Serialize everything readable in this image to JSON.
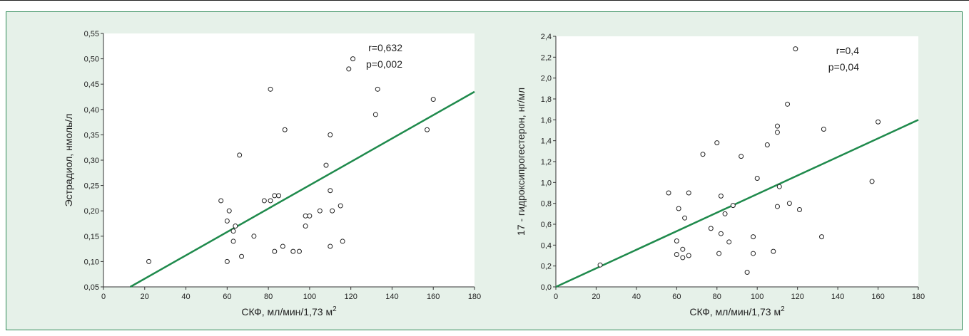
{
  "colors": {
    "panel_bg": "#e6f1e9",
    "plot_bg": "#ffffff",
    "line": "#1f8a4c",
    "border": "#2e8a57"
  },
  "chart_data": [
    {
      "type": "scatter",
      "xlabel": "СКФ, мл/мин/1,73 м",
      "xlabel_sup": "2",
      "ylabel": "Эстрадиол, нмоль/л",
      "xlim": [
        0,
        180
      ],
      "ylim": [
        0.05,
        0.55
      ],
      "x_ticks": [
        0,
        20,
        40,
        60,
        80,
        100,
        120,
        140,
        160,
        180
      ],
      "x_tick_labels": [
        "0",
        "20",
        "40",
        "60",
        "80",
        "100",
        "120",
        "140",
        "160",
        "180"
      ],
      "y_ticks": [
        0.05,
        0.1,
        0.15,
        0.2,
        0.25,
        0.3,
        0.35,
        0.4,
        0.45,
        0.5,
        0.55
      ],
      "y_tick_labels": [
        "0,05",
        "0,10",
        "0,15",
        "0,20",
        "0,25",
        "0,30",
        "0,35",
        "0,40",
        "0,45",
        "0,50",
        "0,55"
      ],
      "annotations": [
        "r=0,632",
        "p=0,002"
      ],
      "regression": {
        "x": [
          13,
          180
        ],
        "y": [
          0.05,
          0.435
        ]
      },
      "points": [
        [
          22,
          0.1
        ],
        [
          57,
          0.22
        ],
        [
          60,
          0.18
        ],
        [
          61,
          0.2
        ],
        [
          60,
          0.1
        ],
        [
          63,
          0.16
        ],
        [
          63,
          0.14
        ],
        [
          64,
          0.17
        ],
        [
          66,
          0.31
        ],
        [
          67,
          0.11
        ],
        [
          73,
          0.15
        ],
        [
          78,
          0.22
        ],
        [
          81,
          0.22
        ],
        [
          81,
          0.44
        ],
        [
          83,
          0.23
        ],
        [
          83,
          0.12
        ],
        [
          85,
          0.23
        ],
        [
          87,
          0.13
        ],
        [
          88,
          0.36
        ],
        [
          92,
          0.12
        ],
        [
          95,
          0.12
        ],
        [
          98,
          0.17
        ],
        [
          98,
          0.19
        ],
        [
          100,
          0.19
        ],
        [
          105,
          0.2
        ],
        [
          108,
          0.29
        ],
        [
          110,
          0.35
        ],
        [
          110,
          0.24
        ],
        [
          110,
          0.13
        ],
        [
          111,
          0.2
        ],
        [
          115,
          0.21
        ],
        [
          116,
          0.14
        ],
        [
          119,
          0.48
        ],
        [
          121,
          0.5
        ],
        [
          132,
          0.39
        ],
        [
          133,
          0.44
        ],
        [
          157,
          0.36
        ],
        [
          160,
          0.42
        ]
      ]
    },
    {
      "type": "scatter",
      "xlabel": "СКФ, мл/мин/1,73 м",
      "xlabel_sup": "2",
      "ylabel": "17 - гидроксипрогестерон, нг/мл",
      "xlim": [
        0,
        180
      ],
      "ylim": [
        0.0,
        2.4
      ],
      "x_ticks": [
        0,
        20,
        40,
        60,
        80,
        100,
        120,
        140,
        160,
        180
      ],
      "x_tick_labels": [
        "0",
        "20",
        "40",
        "60",
        "80",
        "100",
        "120",
        "140",
        "160",
        "180"
      ],
      "y_ticks": [
        0.0,
        0.2,
        0.4,
        0.6,
        0.8,
        1.0,
        1.2,
        1.4,
        1.6,
        1.8,
        2.0,
        2.2,
        2.4
      ],
      "y_tick_labels": [
        "0,0",
        "0,2",
        "0,4",
        "0,6",
        "0,8",
        "1,0",
        "1,2",
        "1,4",
        "1,6",
        "1,8",
        "2,0",
        "2,2",
        "2,4"
      ],
      "annotations": [
        "r=0,4",
        "p=0,04"
      ],
      "regression": {
        "x": [
          0,
          180
        ],
        "y": [
          0.0,
          1.6
        ]
      },
      "points": [
        [
          22,
          0.21
        ],
        [
          56,
          0.9
        ],
        [
          60,
          0.44
        ],
        [
          60,
          0.31
        ],
        [
          61,
          0.75
        ],
        [
          63,
          0.36
        ],
        [
          63,
          0.28
        ],
        [
          64,
          0.66
        ],
        [
          66,
          0.9
        ],
        [
          66,
          0.3
        ],
        [
          73,
          1.27
        ],
        [
          77,
          0.56
        ],
        [
          80,
          1.38
        ],
        [
          81,
          0.32
        ],
        [
          82,
          0.87
        ],
        [
          82,
          0.51
        ],
        [
          84,
          0.7
        ],
        [
          86,
          0.43
        ],
        [
          88,
          0.78
        ],
        [
          92,
          1.25
        ],
        [
          95,
          0.14
        ],
        [
          98,
          0.48
        ],
        [
          98,
          0.32
        ],
        [
          100,
          1.04
        ],
        [
          105,
          1.36
        ],
        [
          108,
          0.34
        ],
        [
          110,
          1.54
        ],
        [
          110,
          1.48
        ],
        [
          110,
          0.77
        ],
        [
          111,
          0.96
        ],
        [
          115,
          1.75
        ],
        [
          116,
          0.8
        ],
        [
          119,
          2.28
        ],
        [
          121,
          0.74
        ],
        [
          132,
          0.48
        ],
        [
          133,
          1.51
        ],
        [
          157,
          1.01
        ],
        [
          160,
          1.58
        ]
      ]
    }
  ]
}
